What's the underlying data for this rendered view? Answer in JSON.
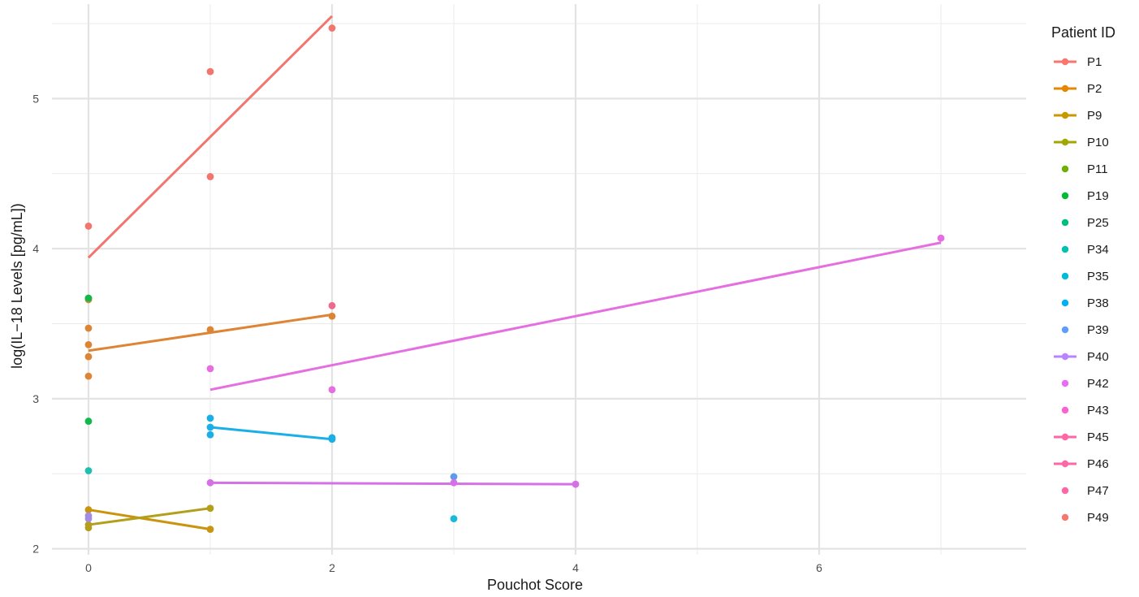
{
  "chart_data": {
    "type": "scatter",
    "xlabel": "Pouchot Score",
    "ylabel": "log(IL−18 Levels [pg/mL])",
    "xlim": [
      -0.3,
      7.7
    ],
    "ylim": [
      1.96,
      5.63
    ],
    "x_ticks": [
      0,
      2,
      4,
      6
    ],
    "x_minor": [
      1,
      3,
      5,
      7
    ],
    "y_ticks": [
      2,
      3,
      4,
      5
    ],
    "y_minor": [
      2.5,
      3.5,
      4.5,
      5.5
    ],
    "x_tick_labels": [
      "0",
      "2",
      "4",
      "6"
    ],
    "y_tick_labels": [
      "2",
      "3",
      "4",
      "5"
    ],
    "grid": true,
    "legend": {
      "title": "Patient ID",
      "position": "right",
      "items": [
        {
          "label": "P1",
          "color": "#F8766D",
          "line": true
        },
        {
          "label": "P2",
          "color": "#E58700",
          "line": true
        },
        {
          "label": "P9",
          "color": "#C99800",
          "line": true
        },
        {
          "label": "P10",
          "color": "#A3A500",
          "line": true
        },
        {
          "label": "P11",
          "color": "#6BB100",
          "line": false
        },
        {
          "label": "P19",
          "color": "#00BA38",
          "line": false
        },
        {
          "label": "P25",
          "color": "#00BF7D",
          "line": false
        },
        {
          "label": "P34",
          "color": "#00C0AF",
          "line": false
        },
        {
          "label": "P35",
          "color": "#00BCD8",
          "line": false
        },
        {
          "label": "P38",
          "color": "#00B0F6",
          "line": false
        },
        {
          "label": "P39",
          "color": "#619CFF",
          "line": false
        },
        {
          "label": "P40",
          "color": "#B983FF",
          "line": true
        },
        {
          "label": "P42",
          "color": "#E76BF3",
          "line": false
        },
        {
          "label": "P43",
          "color": "#FD61D1",
          "line": false
        },
        {
          "label": "P45",
          "color": "#FF67A4",
          "line": true
        },
        {
          "label": "P46",
          "color": "#FF67A4",
          "line": true
        },
        {
          "label": "P47",
          "color": "#FF67A4",
          "line": false
        },
        {
          "label": "P49",
          "color": "#F8766D",
          "line": false
        }
      ]
    },
    "series": [
      {
        "name": "P1",
        "color": "#F1766E",
        "points": [
          [
            0,
            4.15
          ],
          [
            1,
            4.48
          ],
          [
            1,
            5.18
          ],
          [
            2,
            5.47
          ]
        ],
        "fit": [
          [
            0,
            3.94
          ],
          [
            2,
            5.55
          ]
        ]
      },
      {
        "name": "P2",
        "color": "#DD8534",
        "points": [
          [
            0,
            3.15
          ],
          [
            0,
            3.28
          ],
          [
            0,
            3.36
          ],
          [
            0,
            3.47
          ],
          [
            0,
            3.66
          ],
          [
            1,
            3.46
          ],
          [
            2,
            3.55
          ]
        ],
        "fit": [
          [
            0,
            3.32
          ],
          [
            2,
            3.56
          ]
        ]
      },
      {
        "name": "P9",
        "color": "#C9940E",
        "points": [
          [
            0,
            2.26
          ],
          [
            1,
            2.13
          ]
        ],
        "fit": [
          [
            0,
            2.26
          ],
          [
            1,
            2.13
          ]
        ]
      },
      {
        "name": "P10",
        "color": "#B39F1A",
        "points": [
          [
            0,
            2.14
          ],
          [
            0,
            2.16
          ],
          [
            1,
            2.27
          ]
        ],
        "fit": [
          [
            0,
            2.16
          ],
          [
            1,
            2.27
          ]
        ]
      },
      {
        "name": "P19",
        "color": "#6BB100",
        "points": [
          [
            0,
            3.67
          ]
        ],
        "fit": null
      },
      {
        "name": "P25",
        "color": "#12B84C",
        "points": [
          [
            0,
            3.67
          ],
          [
            0,
            2.85
          ]
        ],
        "fit": null
      },
      {
        "name": "P35",
        "color": "#1EBFAF",
        "points": [
          [
            0,
            2.52
          ]
        ],
        "fit": null
      },
      {
        "name": "P38",
        "color": "#1AB8DA",
        "points": [
          [
            3,
            2.2
          ]
        ],
        "fit": null
      },
      {
        "name": "P40",
        "color": "#1AAFE6",
        "points": [
          [
            1,
            2.87
          ],
          [
            1,
            2.81
          ],
          [
            1,
            2.76
          ],
          [
            2,
            2.74
          ],
          [
            2,
            2.73
          ]
        ],
        "fit": [
          [
            1,
            2.81
          ],
          [
            2,
            2.73
          ]
        ]
      },
      {
        "name": "P42",
        "color": "#5F9BEA",
        "points": [
          [
            3,
            2.48
          ]
        ],
        "fit": null
      },
      {
        "name": "P43",
        "color": "#A68BE4",
        "points": [
          [
            0,
            2.22
          ],
          [
            0,
            2.2
          ]
        ],
        "fit": null
      },
      {
        "name": "P45",
        "color": "#D570E6",
        "points": [
          [
            1,
            2.44
          ],
          [
            3,
            2.44
          ],
          [
            4,
            2.43
          ]
        ],
        "fit": [
          [
            1,
            2.44
          ],
          [
            4,
            2.43
          ]
        ]
      },
      {
        "name": "P46",
        "color": "#E56EE0",
        "points": [
          [
            1,
            3.2
          ],
          [
            2,
            3.06
          ],
          [
            7,
            4.07
          ]
        ],
        "fit": [
          [
            1,
            3.06
          ],
          [
            7,
            4.04
          ]
        ]
      },
      {
        "name": "P49",
        "color": "#EE6A8A",
        "points": [
          [
            2,
            3.62
          ]
        ],
        "fit": null
      }
    ]
  }
}
